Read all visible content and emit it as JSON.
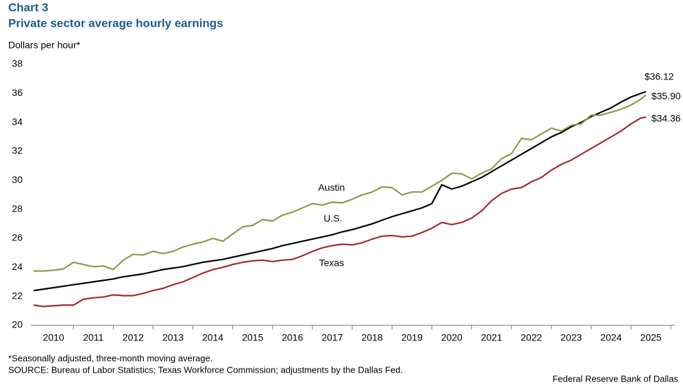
{
  "chart_data": {
    "type": "line",
    "title": "Chart 3",
    "subtitle": "Private sector average hourly earnings",
    "y_label": "Dollars per hour*",
    "notes": [
      "*Seasonally adjusted, three-month moving average.",
      "SOURCE: Bureau of Labor Statistics; Texas Workforce Commission; adjustments by the Dallas Fed."
    ],
    "credit": "Federal Reserve Bank of Dallas",
    "xlim": [
      2009.93,
      2026.1
    ],
    "xticks": [
      {
        "value": 2010.5,
        "label": "2010"
      },
      {
        "value": 2011.5,
        "label": "2011"
      },
      {
        "value": 2012.5,
        "label": "2012"
      },
      {
        "value": 2013.5,
        "label": "2013"
      },
      {
        "value": 2014.5,
        "label": "2014"
      },
      {
        "value": 2015.5,
        "label": "2015"
      },
      {
        "value": 2016.5,
        "label": "2016"
      },
      {
        "value": 2017.5,
        "label": "2017"
      },
      {
        "value": 2018.5,
        "label": "2018"
      },
      {
        "value": 2019.5,
        "label": "2019"
      },
      {
        "value": 2020.5,
        "label": "2020"
      },
      {
        "value": 2021.5,
        "label": "2021"
      },
      {
        "value": 2022.5,
        "label": "2022"
      },
      {
        "value": 2023.5,
        "label": "2023"
      },
      {
        "value": 2024.5,
        "label": "2024"
      },
      {
        "value": 2025.5,
        "label": "2025"
      }
    ],
    "ylim": [
      20,
      38
    ],
    "yticks": [
      20,
      22,
      24,
      26,
      28,
      30,
      32,
      34,
      36,
      38
    ],
    "grid": false,
    "x": [
      2010,
      2010.25,
      2010.5,
      2010.75,
      2011,
      2011.25,
      2011.5,
      2011.75,
      2012,
      2012.25,
      2012.5,
      2012.75,
      2013,
      2013.25,
      2013.5,
      2013.75,
      2014,
      2014.25,
      2014.5,
      2014.75,
      2015,
      2015.25,
      2015.5,
      2015.75,
      2016,
      2016.25,
      2016.5,
      2016.75,
      2017,
      2017.25,
      2017.5,
      2017.75,
      2018,
      2018.25,
      2018.5,
      2018.75,
      2019,
      2019.25,
      2019.5,
      2019.75,
      2020,
      2020.25,
      2020.5,
      2020.75,
      2021,
      2021.25,
      2021.5,
      2021.75,
      2022,
      2022.25,
      2022.5,
      2022.75,
      2023,
      2023.25,
      2023.5,
      2023.75,
      2024,
      2024.25,
      2024.5,
      2024.75,
      2025,
      2025.25,
      2025.375
    ],
    "series": [
      {
        "name": "U.S.",
        "color": "#000000",
        "end_label": "$36.12",
        "values": [
          22.4,
          22.5,
          22.6,
          22.7,
          22.8,
          22.9,
          23.0,
          23.1,
          23.2,
          23.35,
          23.45,
          23.55,
          23.7,
          23.85,
          23.95,
          24.05,
          24.2,
          24.35,
          24.45,
          24.55,
          24.7,
          24.85,
          25.0,
          25.15,
          25.3,
          25.5,
          25.65,
          25.8,
          25.95,
          26.1,
          26.25,
          26.45,
          26.6,
          26.8,
          27.0,
          27.25,
          27.5,
          27.7,
          27.9,
          28.1,
          28.4,
          29.7,
          29.4,
          29.6,
          29.9,
          30.2,
          30.6,
          31.0,
          31.4,
          31.8,
          32.2,
          32.6,
          33.0,
          33.3,
          33.7,
          34.0,
          34.4,
          34.7,
          35.0,
          35.4,
          35.75,
          36.0,
          36.12
        ]
      },
      {
        "name": "Austin",
        "color": "#8b9b45",
        "end_label": "$35.90",
        "values": [
          23.75,
          23.75,
          23.8,
          23.9,
          24.35,
          24.2,
          24.05,
          24.1,
          23.85,
          24.5,
          24.9,
          24.85,
          25.1,
          24.95,
          25.1,
          25.4,
          25.6,
          25.75,
          26.0,
          25.8,
          26.3,
          26.8,
          26.9,
          27.3,
          27.2,
          27.6,
          27.8,
          28.1,
          28.4,
          28.3,
          28.5,
          28.45,
          28.7,
          29.0,
          29.2,
          29.55,
          29.5,
          29.0,
          29.2,
          29.2,
          29.6,
          30.0,
          30.5,
          30.45,
          30.1,
          30.5,
          30.8,
          31.5,
          31.85,
          32.9,
          32.8,
          33.2,
          33.6,
          33.4,
          33.8,
          33.9,
          34.5,
          34.5,
          34.7,
          34.9,
          35.2,
          35.6,
          35.9
        ]
      },
      {
        "name": "Texas",
        "color": "#a6282e",
        "end_label": "$34.36",
        "values": [
          21.4,
          21.3,
          21.35,
          21.4,
          21.4,
          21.8,
          21.9,
          21.95,
          22.1,
          22.05,
          22.05,
          22.2,
          22.4,
          22.55,
          22.8,
          23.0,
          23.3,
          23.6,
          23.85,
          24.0,
          24.2,
          24.35,
          24.45,
          24.5,
          24.4,
          24.5,
          24.55,
          24.8,
          25.1,
          25.35,
          25.5,
          25.6,
          25.55,
          25.7,
          25.95,
          26.15,
          26.2,
          26.1,
          26.15,
          26.4,
          26.7,
          27.1,
          26.95,
          27.1,
          27.4,
          27.9,
          28.6,
          29.1,
          29.4,
          29.5,
          29.9,
          30.2,
          30.7,
          31.1,
          31.4,
          31.8,
          32.2,
          32.6,
          33.0,
          33.4,
          33.9,
          34.3,
          34.36
        ]
      }
    ]
  }
}
